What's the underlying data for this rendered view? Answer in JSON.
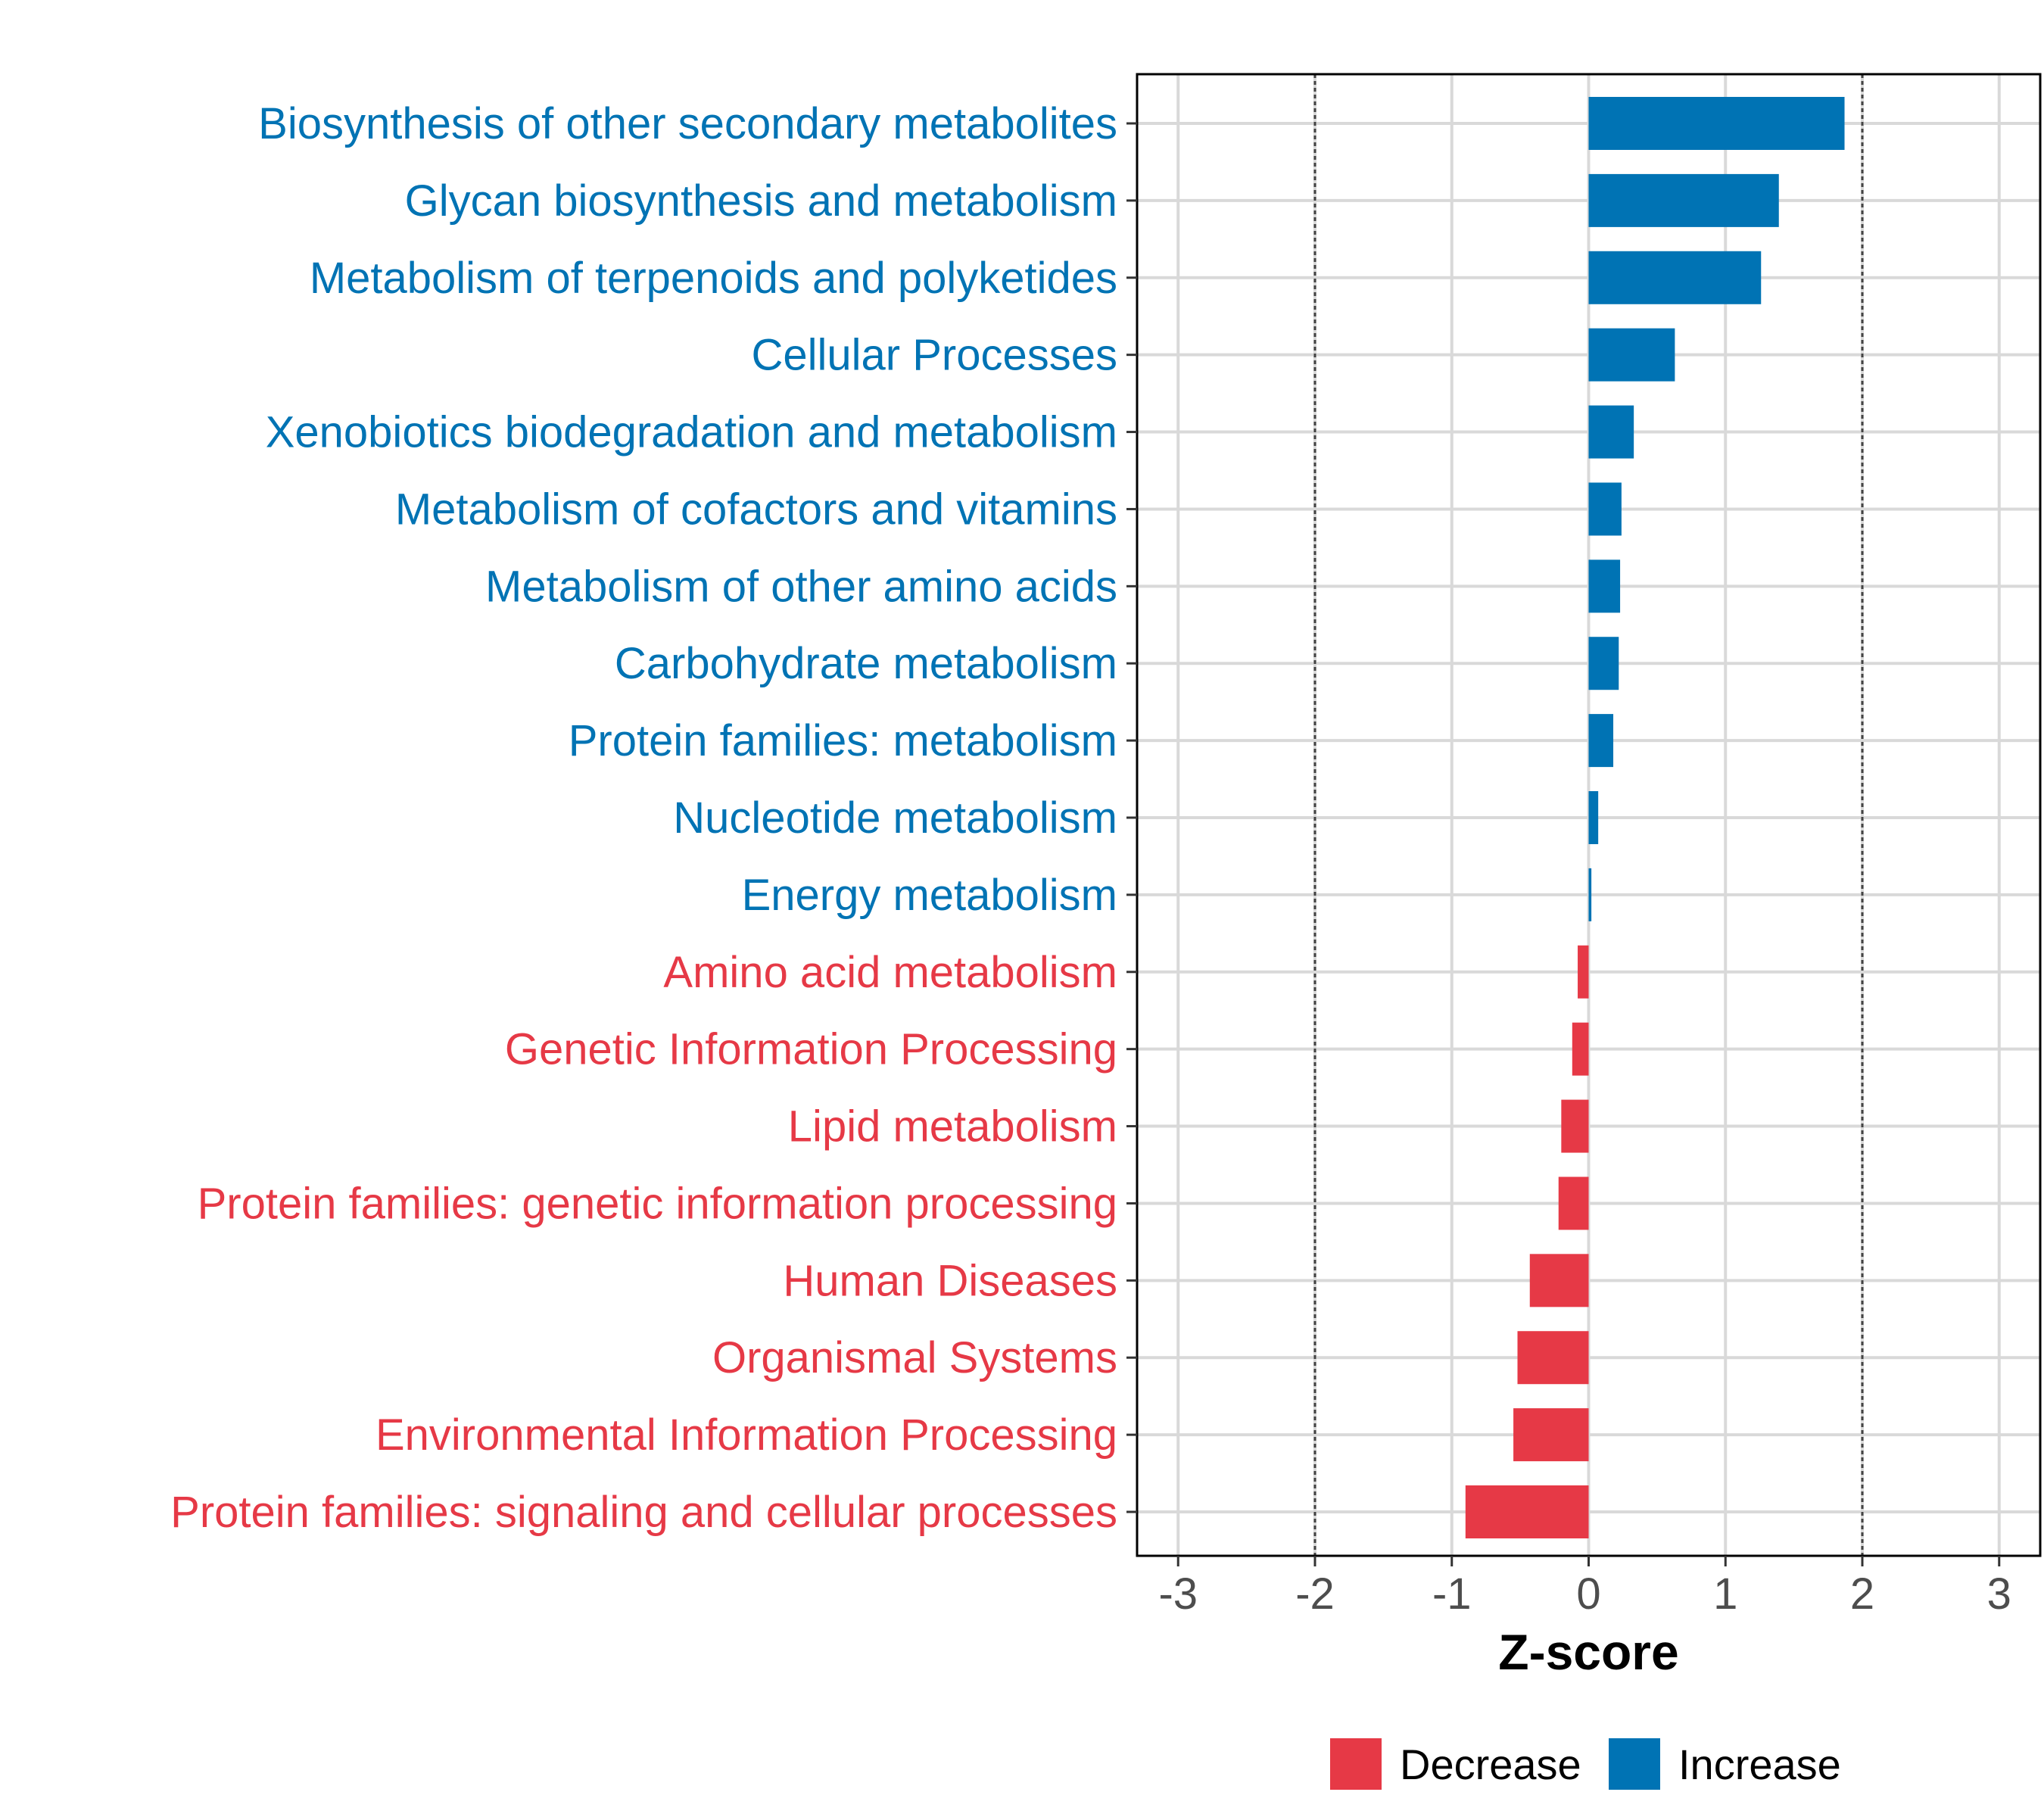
{
  "chart_data": {
    "type": "bar",
    "orientation": "horizontal",
    "title": "",
    "xlabel": "Z-score",
    "ylabel": "",
    "xlim": [
      -3.3,
      3.3
    ],
    "xticks": [
      -3,
      -2,
      -1,
      0,
      1,
      2,
      3
    ],
    "xtick_labels": [
      "-3",
      "-2",
      "-1",
      "0",
      "1",
      "2",
      "3"
    ],
    "reference_lines": [
      -2,
      2
    ],
    "grid": true,
    "legend_position": "bottom",
    "colors": {
      "Increase": "#0073b4",
      "Decrease": "#e63946"
    },
    "categories": [
      "Biosynthesis of other secondary metabolites",
      "Glycan biosynthesis and metabolism",
      "Metabolism of terpenoids and polyketides",
      "Cellular Processes",
      "Xenobiotics biodegradation and metabolism",
      "Metabolism of cofactors and vitamins",
      "Metabolism of other amino acids",
      "Carbohydrate metabolism",
      "Protein families: metabolism",
      "Nucleotide metabolism",
      "Energy metabolism",
      "Amino acid metabolism",
      "Genetic Information Processing",
      "Lipid metabolism",
      "Protein families: genetic information processing",
      "Human Diseases",
      "Organismal Systems",
      "Environmental Information Processing",
      "Protein families: signaling and cellular processes"
    ],
    "values": [
      1.87,
      1.39,
      1.26,
      0.63,
      0.33,
      0.24,
      0.23,
      0.22,
      0.18,
      0.07,
      0.02,
      -0.08,
      -0.12,
      -0.2,
      -0.22,
      -0.43,
      -0.52,
      -0.55,
      -0.9
    ],
    "groups": [
      "Increase",
      "Increase",
      "Increase",
      "Increase",
      "Increase",
      "Increase",
      "Increase",
      "Increase",
      "Increase",
      "Increase",
      "Increase",
      "Decrease",
      "Decrease",
      "Decrease",
      "Decrease",
      "Decrease",
      "Decrease",
      "Decrease",
      "Decrease"
    ],
    "legend": [
      {
        "label": "Decrease",
        "color": "#e63946"
      },
      {
        "label": "Increase",
        "color": "#0073b4"
      }
    ]
  }
}
